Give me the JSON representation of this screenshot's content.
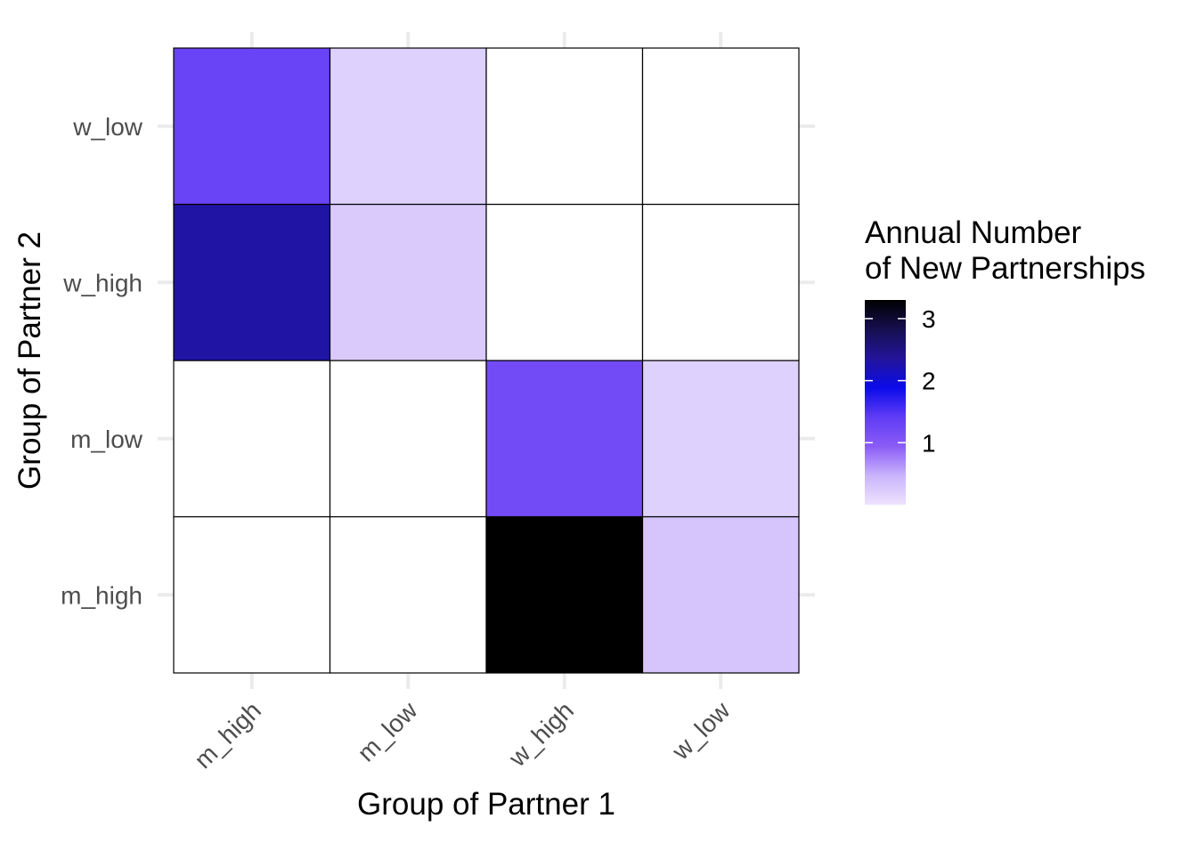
{
  "chart_data": {
    "type": "heatmap",
    "title": "",
    "xlabel": "Group of Partner 1",
    "ylabel": "Group of Partner 2",
    "x_categories": [
      "m_high",
      "m_low",
      "w_high",
      "w_low"
    ],
    "y_categories": [
      "m_high",
      "m_low",
      "w_high",
      "w_low"
    ],
    "cells": [
      {
        "x": "m_high",
        "y": "w_low",
        "value": 1.3
      },
      {
        "x": "m_low",
        "y": "w_low",
        "value": 0.18
      },
      {
        "x": "m_high",
        "y": "w_high",
        "value": 2.3
      },
      {
        "x": "m_low",
        "y": "w_high",
        "value": 0.25
      },
      {
        "x": "w_high",
        "y": "m_low",
        "value": 1.2
      },
      {
        "x": "w_low",
        "y": "m_low",
        "value": 0.18
      },
      {
        "x": "w_high",
        "y": "m_high",
        "value": 3.3
      },
      {
        "x": "w_low",
        "y": "m_high",
        "value": 0.3
      }
    ],
    "empty_cell_color": "#ffffff",
    "grid": true,
    "legend": {
      "title_lines": [
        "Annual Number",
        "of New Partnerships"
      ],
      "position": "right",
      "range": [
        0.0,
        3.3
      ],
      "ticks": [
        1,
        2,
        3
      ],
      "colors": [
        "#ede3fe",
        "#c9b3fb",
        "#8a5cf7",
        "#5f3cf6",
        "#0b0bea",
        "#23159a",
        "#160f4f",
        "#000000"
      ]
    }
  }
}
